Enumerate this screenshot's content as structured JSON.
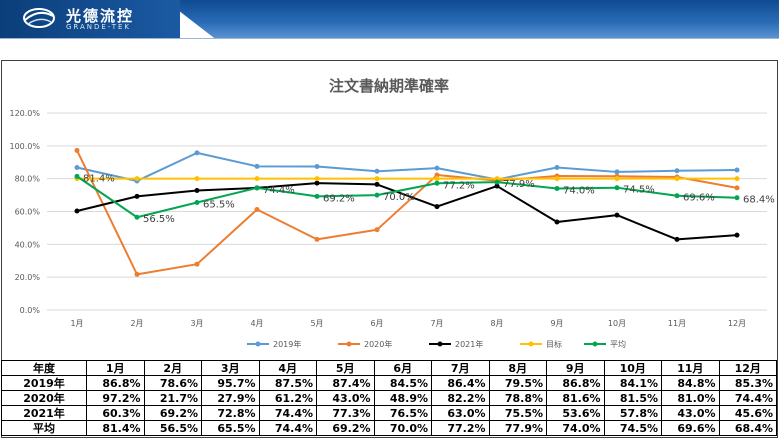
{
  "brand": {
    "name": "光德流控",
    "sub": "GRANDE-TEK"
  },
  "table": {
    "header": [
      "年度",
      "1月",
      "2月",
      "3月",
      "4月",
      "5月",
      "6月",
      "7月",
      "8月",
      "9月",
      "10月",
      "11月",
      "12月"
    ],
    "rows": [
      {
        "label": "2019年",
        "cells": [
          "86.8%",
          "78.6%",
          "95.7%",
          "87.5%",
          "87.4%",
          "84.5%",
          "86.4%",
          "79.5%",
          "86.8%",
          "84.1%",
          "84.8%",
          "85.3%"
        ]
      },
      {
        "label": "2020年",
        "cells": [
          "97.2%",
          "21.7%",
          "27.9%",
          "61.2%",
          "43.0%",
          "48.9%",
          "82.2%",
          "78.8%",
          "81.6%",
          "81.5%",
          "81.0%",
          "74.4%"
        ]
      },
      {
        "label": "2021年",
        "cells": [
          "60.3%",
          "69.2%",
          "72.8%",
          "74.4%",
          "77.3%",
          "76.5%",
          "63.0%",
          "75.5%",
          "53.6%",
          "57.8%",
          "43.0%",
          "45.6%"
        ]
      },
      {
        "label": "平均",
        "cells": [
          "81.4%",
          "56.5%",
          "65.5%",
          "74.4%",
          "69.2%",
          "70.0%",
          "77.2%",
          "77.9%",
          "74.0%",
          "74.5%",
          "69.6%",
          "68.4%"
        ]
      }
    ]
  },
  "chart_data": {
    "type": "line",
    "title": "注文書納期準確率",
    "categories": [
      "1月",
      "2月",
      "3月",
      "4月",
      "5月",
      "6月",
      "7月",
      "8月",
      "9月",
      "10月",
      "11月",
      "12月"
    ],
    "ylim": [
      0,
      120
    ],
    "yticks": [
      "0.0%",
      "20.0%",
      "40.0%",
      "60.0%",
      "80.0%",
      "100.0%",
      "120.0%"
    ],
    "legend_position": "bottom",
    "grid": "horizontal",
    "series": [
      {
        "name": "2019年",
        "color": "#5b9bd5",
        "values": [
          86.8,
          78.6,
          95.7,
          87.5,
          87.4,
          84.5,
          86.4,
          79.5,
          86.8,
          84.1,
          84.8,
          85.3
        ]
      },
      {
        "name": "2020年",
        "color": "#ed7d31",
        "values": [
          97.2,
          21.7,
          27.9,
          61.2,
          43.0,
          48.9,
          82.2,
          78.8,
          81.6,
          81.5,
          81.0,
          74.4
        ]
      },
      {
        "name": "2021年",
        "color": "#000000",
        "values": [
          60.3,
          69.2,
          72.8,
          74.4,
          77.3,
          76.5,
          63.0,
          75.5,
          53.6,
          57.8,
          43.0,
          45.6
        ]
      },
      {
        "name": "目标",
        "color": "#ffc000",
        "values": [
          80,
          80,
          80,
          80,
          80,
          80,
          80,
          80,
          80,
          80,
          80,
          80
        ]
      },
      {
        "name": "平均",
        "color": "#00a651",
        "values": [
          81.4,
          56.5,
          65.5,
          74.4,
          69.2,
          70.0,
          77.2,
          77.9,
          74.0,
          74.5,
          69.6,
          68.4
        ],
        "labels": [
          "81.4%",
          "56.5%",
          "65.5%",
          "74.4%",
          "69.2%",
          "70.0%",
          "77.2%",
          "77.9%",
          "74.0%",
          "74.5%",
          "69.6%",
          "68.4%"
        ]
      }
    ]
  }
}
